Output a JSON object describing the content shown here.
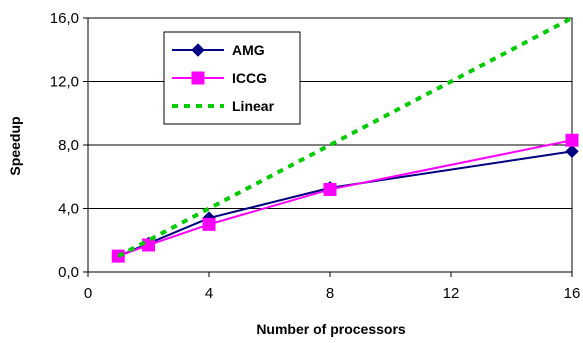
{
  "chart_data": {
    "type": "line",
    "title": "",
    "xlabel": "Number of processors",
    "ylabel": "Speedup",
    "xlim": [
      0,
      16
    ],
    "ylim": [
      0,
      16
    ],
    "x_ticks": [
      0,
      4,
      8,
      12,
      16
    ],
    "x_tick_labels": [
      "0",
      "4",
      "8",
      "12",
      "16"
    ],
    "y_ticks": [
      0,
      4,
      8,
      12,
      16
    ],
    "y_tick_labels": [
      "0,0",
      "4,0",
      "8,0",
      "12,0",
      "16,0"
    ],
    "grid": "horizontal",
    "legend_position": "top-left",
    "series": [
      {
        "name": "AMG",
        "x": [
          1,
          2,
          4,
          8,
          16
        ],
        "y": [
          1.0,
          1.8,
          3.4,
          5.3,
          7.6
        ],
        "color": "#000080",
        "marker": "diamond",
        "line_style": "solid"
      },
      {
        "name": "ICCG",
        "x": [
          1,
          2,
          4,
          8,
          16
        ],
        "y": [
          1.0,
          1.7,
          3.0,
          5.2,
          8.3
        ],
        "color": "#ff00ff",
        "marker": "square",
        "line_style": "solid"
      },
      {
        "name": "Linear",
        "x": [
          1,
          16
        ],
        "y": [
          1,
          16
        ],
        "color": "#00cc00",
        "marker": "none",
        "line_style": "dashed"
      }
    ]
  }
}
